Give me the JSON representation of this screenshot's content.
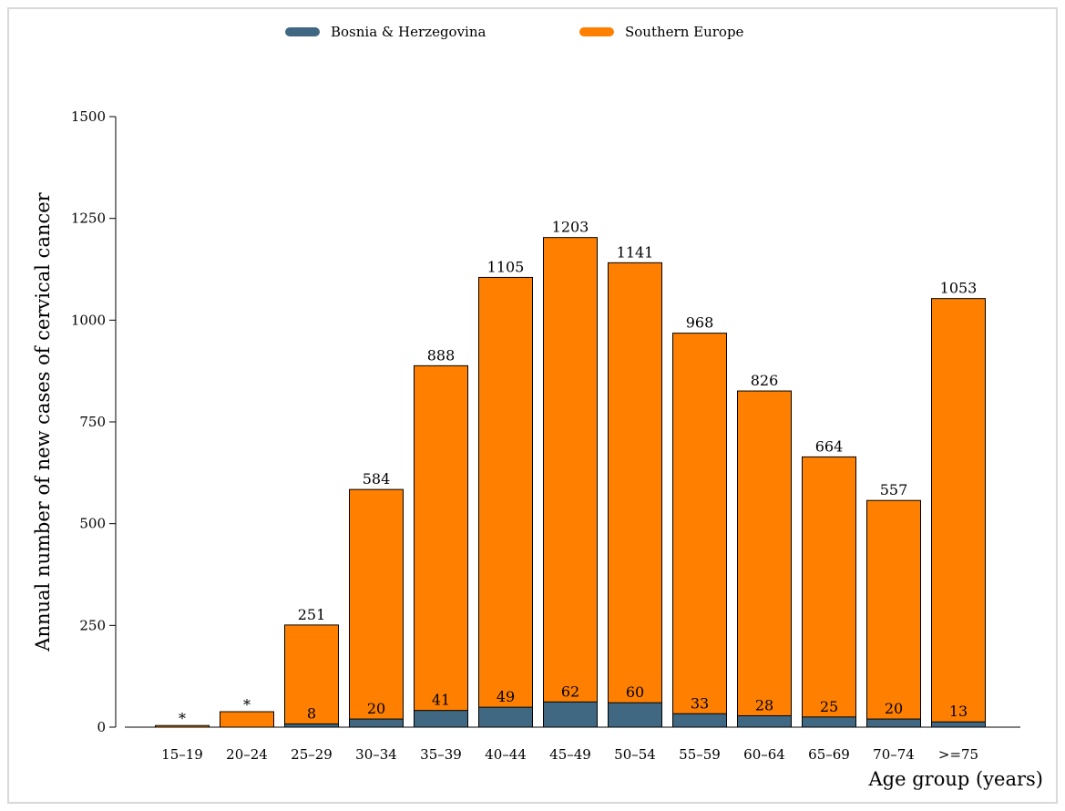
{
  "chart_data": {
    "type": "bar",
    "stacked": "overlay",
    "title": "",
    "xlabel": "Age group (years)",
    "ylabel": "Annual number of new cases of cervical cancer",
    "ylim": [
      0,
      1500
    ],
    "yticks": [
      0,
      250,
      500,
      750,
      1000,
      1250,
      1500
    ],
    "categories": [
      "15–19",
      "20–24",
      "25–29",
      "30–34",
      "35–39",
      "40–44",
      "45–49",
      "50–54",
      "55–59",
      "60–64",
      "65–69",
      "70–74",
      ">=75"
    ],
    "series": [
      {
        "name": "Bosnia & Herzegovina",
        "color": "#406882",
        "values": [
          0,
          0,
          8,
          20,
          41,
          49,
          62,
          60,
          33,
          28,
          25,
          20,
          13
        ],
        "labels": [
          "",
          "",
          "8",
          "20",
          "41",
          "49",
          "62",
          "60",
          "33",
          "28",
          "25",
          "20",
          "13"
        ]
      },
      {
        "name": "Southern Europe",
        "color": "#ff8000",
        "values": [
          4,
          38,
          251,
          584,
          888,
          1105,
          1203,
          1141,
          968,
          826,
          664,
          557,
          1053
        ],
        "labels": [
          "*",
          "*",
          "251",
          "584",
          "888",
          "1105",
          "1203",
          "1141",
          "968",
          "826",
          "664",
          "557",
          "1053"
        ]
      }
    ],
    "legend_position": "top",
    "grid": false
  }
}
